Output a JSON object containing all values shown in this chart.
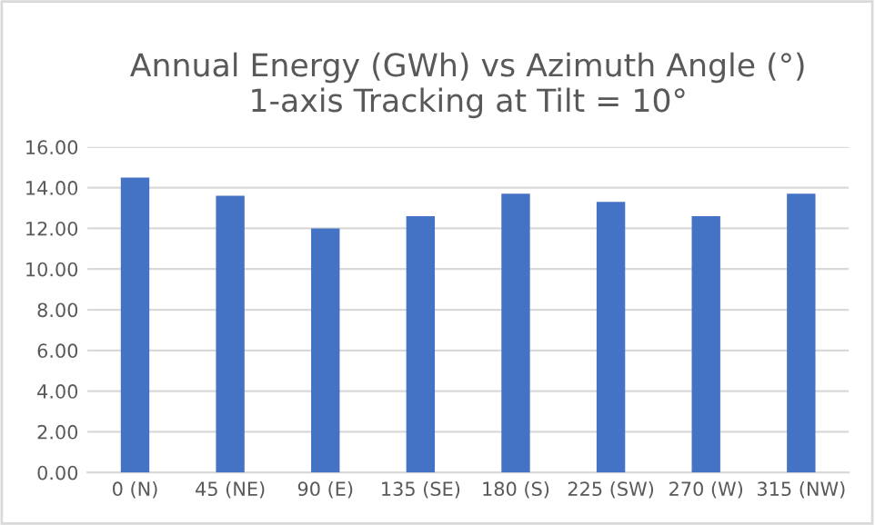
{
  "chart_data": {
    "type": "bar",
    "title": "Annual Energy (GWh) vs Azimuth Angle (°)\n1-axis Tracking at Tilt = 10°",
    "categories": [
      "0 (N)",
      "45 (NE)",
      "90 (E)",
      "135 (SE)",
      "180 (S)",
      "225 (SW)",
      "270 (W)",
      "315 (NW)"
    ],
    "values": [
      14.5,
      13.6,
      12.0,
      12.6,
      13.7,
      13.3,
      12.6,
      13.7
    ],
    "color": "#4472c4",
    "ylim": [
      0,
      16
    ],
    "yticks": [
      {
        "value": 0,
        "label": "0.00"
      },
      {
        "value": 2,
        "label": "2.00"
      },
      {
        "value": 4,
        "label": "4.00"
      },
      {
        "value": 6,
        "label": "6.00"
      },
      {
        "value": 8,
        "label": "8.00"
      },
      {
        "value": 10,
        "label": "10.00"
      },
      {
        "value": 12,
        "label": "12.00"
      },
      {
        "value": 14,
        "label": "14.00"
      },
      {
        "value": 16,
        "label": "16.00"
      }
    ],
    "grid": "y"
  }
}
